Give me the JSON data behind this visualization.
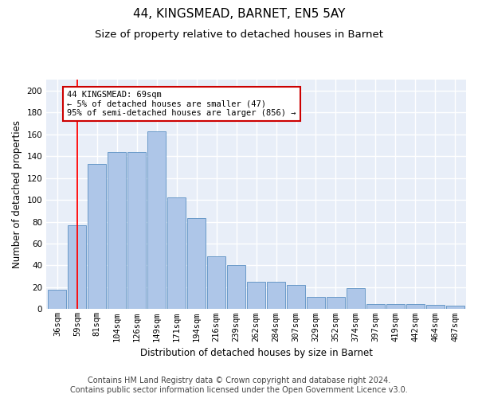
{
  "title1": "44, KINGSMEAD, BARNET, EN5 5AY",
  "title2": "Size of property relative to detached houses in Barnet",
  "xlabel": "Distribution of detached houses by size in Barnet",
  "ylabel": "Number of detached properties",
  "categories": [
    "36sqm",
    "59sqm",
    "81sqm",
    "104sqm",
    "126sqm",
    "149sqm",
    "171sqm",
    "194sqm",
    "216sqm",
    "239sqm",
    "262sqm",
    "284sqm",
    "307sqm",
    "329sqm",
    "352sqm",
    "374sqm",
    "397sqm",
    "419sqm",
    "442sqm",
    "464sqm",
    "487sqm"
  ],
  "values": [
    18,
    77,
    133,
    144,
    144,
    163,
    102,
    83,
    48,
    40,
    25,
    25,
    22,
    11,
    11,
    19,
    5,
    5,
    5,
    4,
    3
  ],
  "bar_color": "#aec6e8",
  "bar_edge_color": "#5a8fc2",
  "fig_background_color": "#ffffff",
  "ax_background_color": "#e8eef8",
  "grid_color": "#ffffff",
  "red_line_x": 1.0,
  "annotation_line1": "44 KINGSMEAD: 69sqm",
  "annotation_line2": "← 5% of detached houses are smaller (47)",
  "annotation_line3": "95% of semi-detached houses are larger (856) →",
  "annotation_box_color": "#ffffff",
  "annotation_box_edge": "#cc0000",
  "ylim": [
    0,
    210
  ],
  "yticks": [
    0,
    20,
    40,
    60,
    80,
    100,
    120,
    140,
    160,
    180,
    200
  ],
  "title1_fontsize": 11,
  "title2_fontsize": 9.5,
  "axis_label_fontsize": 8.5,
  "tick_fontsize": 7.5,
  "annotation_fontsize": 7.5,
  "footer_fontsize": 7,
  "footer1": "Contains HM Land Registry data © Crown copyright and database right 2024.",
  "footer2": "Contains public sector information licensed under the Open Government Licence v3.0."
}
